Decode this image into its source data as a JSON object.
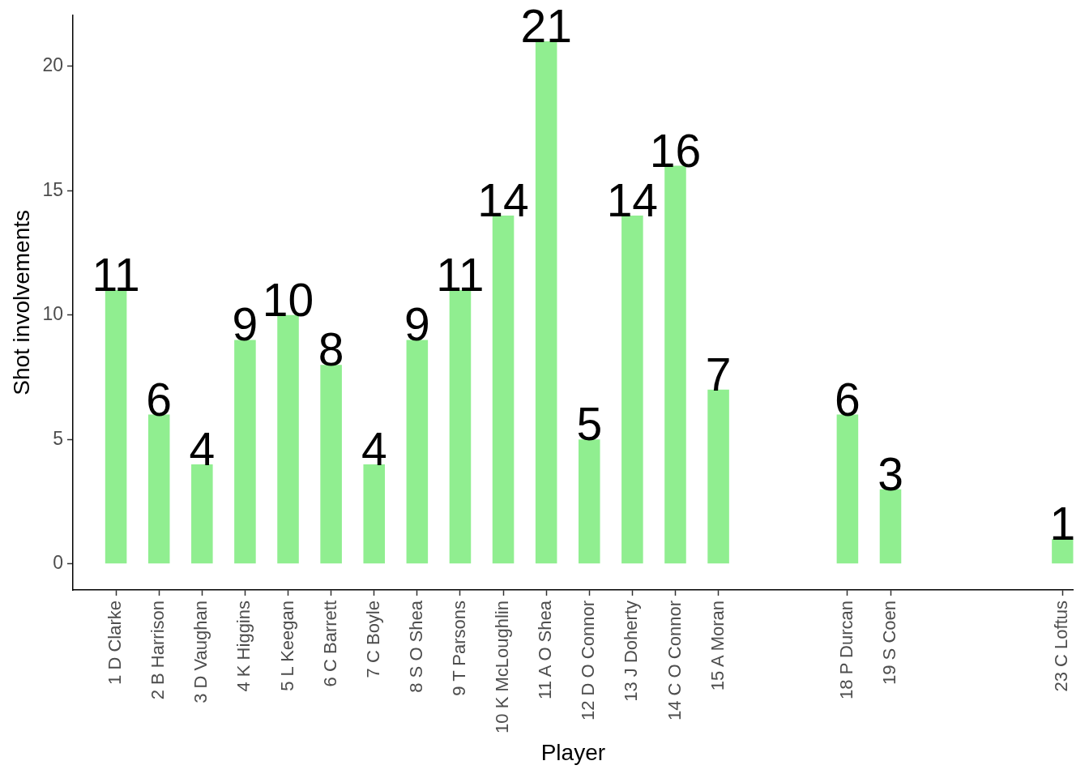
{
  "chart_data": {
    "type": "bar",
    "xlabel": "Player",
    "ylabel": "Shot involvements",
    "x": [
      1,
      2,
      3,
      4,
      5,
      6,
      7,
      8,
      9,
      10,
      11,
      12,
      13,
      14,
      15,
      18,
      19,
      23
    ],
    "values": [
      11,
      6,
      4,
      9,
      10,
      8,
      4,
      9,
      11,
      14,
      21,
      5,
      14,
      16,
      7,
      6,
      3,
      1
    ],
    "color": "#90ee90",
    "data_labels": true,
    "grid": false,
    "legend": false,
    "xlim": [
      0,
      23.25
    ],
    "xticks": [
      {
        "value": 1,
        "label": "1 D Clarke"
      },
      {
        "value": 2,
        "label": "2 B Harrison"
      },
      {
        "value": 3,
        "label": "3 D Vaughan"
      },
      {
        "value": 4,
        "label": "4 K Higgins"
      },
      {
        "value": 5,
        "label": "5 L Keegan"
      },
      {
        "value": 6,
        "label": "6 C Barrett"
      },
      {
        "value": 7,
        "label": "7 C Boyle"
      },
      {
        "value": 8,
        "label": "8 S O Shea"
      },
      {
        "value": 9,
        "label": "9 T Parsons"
      },
      {
        "value": 10,
        "label": "10 K McLoughlin"
      },
      {
        "value": 11,
        "label": "11 A O Shea"
      },
      {
        "value": 12,
        "label": "12 D O Connor"
      },
      {
        "value": 13,
        "label": "13 J Doherty"
      },
      {
        "value": 14,
        "label": "14 C O Connor"
      },
      {
        "value": 15,
        "label": "15 A Moran"
      },
      {
        "value": 18,
        "label": "18 P Durcan"
      },
      {
        "value": 19,
        "label": "19 S Coen"
      },
      {
        "value": 23,
        "label": "23 C Loftus"
      }
    ],
    "ylim": [
      -1.05,
      22.05
    ],
    "yticks": [
      0,
      5,
      10,
      15,
      20
    ]
  }
}
